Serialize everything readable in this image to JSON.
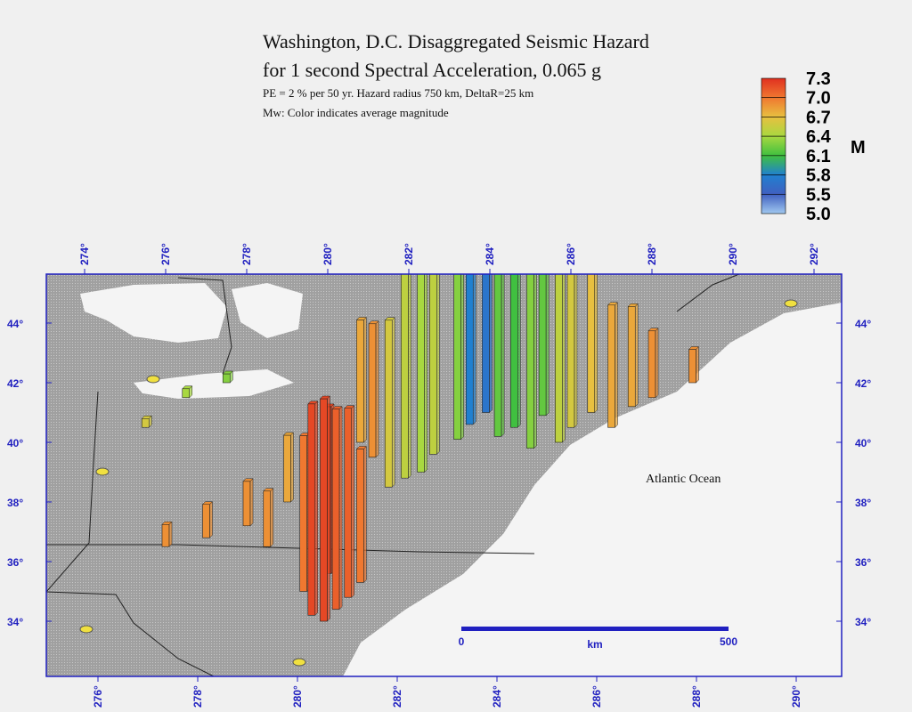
{
  "map": {
    "title": "Washington, D.C. Disaggregated Seismic Hazard",
    "subtitle": "for 1 second Spectral Acceleration, 0.065 g",
    "notes": [
      "PE = 2 % per 50 yr. Hazard radius 750 km, DeltaR=25 km",
      "Mw: Color indicates average magnitude"
    ],
    "legend": {
      "title": "M",
      "ticks": [
        7.3,
        {
          "value": 7,
          "label": "7.0"
        },
        6.7,
        6.4,
        6.1,
        5.8,
        5.5,
        {
          "value": 5,
          "label": "5.0"
        }
      ],
      "colors": [
        "#e03020",
        "#f07830",
        "#e8c040",
        "#a8d840",
        "#40c040",
        "#2080d0",
        "#4060c0",
        "#a0c8f0"
      ]
    },
    "lon_ticks_top": [
      {
        "value": 274,
        "label": "274°"
      },
      {
        "value": 276,
        "label": "276°"
      },
      {
        "value": 278,
        "label": "278°"
      },
      {
        "value": 280,
        "label": "280°"
      },
      {
        "value": 282,
        "label": "282°"
      },
      {
        "value": 284,
        "label": "284°"
      },
      {
        "value": 286,
        "label": "286°"
      },
      {
        "value": 288,
        "label": "288°"
      },
      {
        "value": 290,
        "label": "290°"
      },
      {
        "value": 292,
        "label": "292°"
      }
    ],
    "lon_ticks_bottom": [
      {
        "value": 276,
        "label": "276°"
      },
      {
        "value": 278,
        "label": "278°"
      },
      {
        "value": 280,
        "label": "280°"
      },
      {
        "value": 282,
        "label": "282°"
      },
      {
        "value": 284,
        "label": "284°"
      },
      {
        "value": 286,
        "label": "286°"
      },
      {
        "value": 288,
        "label": "288°"
      },
      {
        "value": 290,
        "label": "290°"
      }
    ],
    "lat_ticks": [
      {
        "value": 44,
        "label": "44°"
      },
      {
        "value": 42,
        "label": "42°"
      },
      {
        "value": 40,
        "label": "40°"
      },
      {
        "value": 38,
        "label": "38°"
      },
      {
        "value": 36,
        "label": "36°"
      },
      {
        "value": 34,
        "label": "34°"
      }
    ],
    "ocean_label": "Atlantic Ocean",
    "scale_bar": {
      "start": 0,
      "unit": "km",
      "end": 500
    },
    "bars": {
      "lon": [
        279.6,
        279.9,
        280.2,
        280.5,
        279.4,
        280.8,
        280.0,
        281.5,
        281.9,
        282.3,
        282.6,
        283.2,
        283.5,
        283.9,
        284.2,
        284.6,
        285.0,
        285.3,
        285.7,
        286.0,
        286.5,
        287.0,
        287.5,
        288.0,
        289.0,
        276.0,
        277.0,
        278.0,
        278.5,
        279.0,
        280.8,
        281.1,
        276.5,
        277.5,
        275.5
      ],
      "lat": [
        34.2,
        34.0,
        34.4,
        34.8,
        35.0,
        35.3,
        35.6,
        38.5,
        38.8,
        39.0,
        39.6,
        40.1,
        40.6,
        41.0,
        40.2,
        40.5,
        39.8,
        40.9,
        40.0,
        40.5,
        41.0,
        40.5,
        41.2,
        41.5,
        42.0,
        36.5,
        36.8,
        37.2,
        36.5,
        38.0,
        40.0,
        39.5,
        41.5,
        42.0,
        40.5
      ],
      "contribution": [
        95,
        100,
        90,
        85,
        70,
        60,
        75,
        75,
        95,
        110,
        100,
        90,
        95,
        90,
        100,
        110,
        95,
        115,
        90,
        80,
        70,
        55,
        45,
        30,
        15,
        10,
        15,
        20,
        25,
        30,
        55,
        60,
        4,
        4,
        4
      ],
      "magnitude": [
        7.2,
        7.2,
        7.1,
        7.1,
        7.0,
        7.0,
        7.2,
        6.6,
        6.5,
        6.4,
        6.5,
        6.3,
        5.8,
        5.7,
        6.2,
        6.1,
        6.3,
        6.2,
        6.5,
        6.6,
        6.7,
        6.8,
        6.8,
        6.9,
        6.9,
        6.9,
        6.9,
        6.9,
        6.9,
        6.8,
        6.8,
        6.9,
        6.4,
        6.3,
        6.6
      ]
    }
  }
}
